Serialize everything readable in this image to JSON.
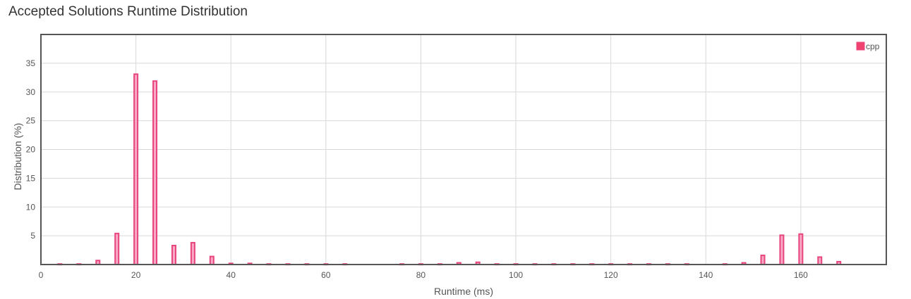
{
  "title": "Accepted Solutions Runtime Distribution",
  "colors": {
    "bar_fill": "#f9a8c6",
    "bar_stroke": "#e8457e",
    "legend": "#f0426f",
    "grid": "#d8d8d8",
    "frame": "#555555"
  },
  "chart_data": {
    "type": "bar",
    "xlabel": "Runtime (ms)",
    "ylabel": "Distribution (%)",
    "xlim": [
      0,
      178
    ],
    "ylim": [
      0,
      40
    ],
    "xticks": [
      0,
      20,
      40,
      60,
      80,
      100,
      120,
      140,
      160
    ],
    "yticks": [
      5,
      10,
      15,
      20,
      25,
      30,
      35
    ],
    "grid": true,
    "legend_position": "top-right",
    "series": [
      {
        "name": "cpp",
        "x": [
          4,
          8,
          12,
          16,
          20,
          24,
          28,
          32,
          36,
          40,
          44,
          48,
          52,
          56,
          60,
          64,
          76,
          80,
          84,
          88,
          92,
          96,
          100,
          104,
          108,
          112,
          116,
          120,
          124,
          128,
          132,
          136,
          144,
          148,
          152,
          156,
          160,
          164,
          168
        ],
        "values": [
          0.1,
          0.1,
          0.7,
          5.4,
          33.1,
          31.9,
          3.3,
          3.8,
          1.4,
          0.2,
          0.2,
          0.1,
          0.1,
          0.1,
          0.1,
          0.1,
          0.1,
          0.1,
          0.1,
          0.3,
          0.4,
          0.1,
          0.1,
          0.1,
          0.1,
          0.1,
          0.1,
          0.1,
          0.1,
          0.1,
          0.1,
          0.1,
          0.1,
          0.3,
          1.6,
          5.1,
          5.3,
          1.3,
          0.5
        ]
      }
    ]
  }
}
